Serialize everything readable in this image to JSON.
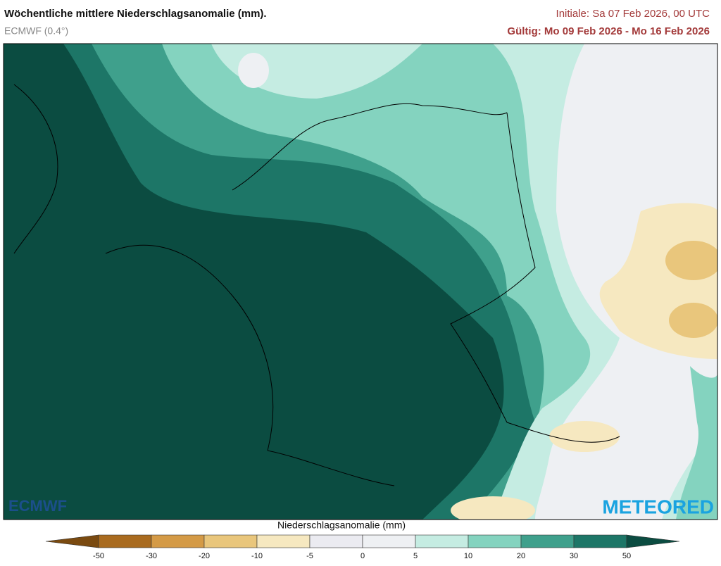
{
  "header": {
    "title": "Wöchentliche mittlere Niederschlagsanomalie (mm).",
    "subtitle": "ECMWF (0.4°)",
    "initial": "Initiale:  Sa 07 Feb 2026, 00 UTC",
    "valid": "Gültig: Mo 09 Feb 2026 - Mo 16 Feb 2026"
  },
  "logos": {
    "left": "ECMWF",
    "right": "METEORED"
  },
  "legend": {
    "title": "Niederschlagsanomalie (mm)",
    "ticks": [
      -50,
      -30,
      -20,
      -10,
      -5,
      0,
      5,
      10,
      20,
      30,
      50
    ],
    "colors": [
      "#7a4a10",
      "#a96b1f",
      "#d49a46",
      "#e9c67c",
      "#f6e8c0",
      "#ebebf1",
      "#eef0f3",
      "#c5ece2",
      "#84d3bf",
      "#3fa08c",
      "#1d7667",
      "#0b4c41"
    ]
  }
}
